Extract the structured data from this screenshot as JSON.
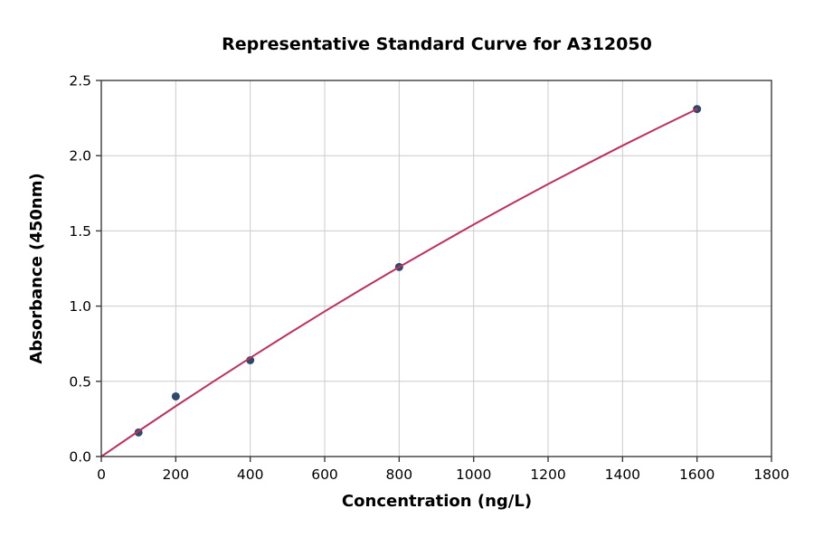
{
  "chart_data": {
    "type": "scatter",
    "title": "Representative Standard Curve for A312050",
    "xlabel": "Concentration (ng/L)",
    "ylabel": "Absorbance (450nm)",
    "xlim": [
      0,
      1800
    ],
    "ylim": [
      0,
      2.5
    ],
    "xticks": [
      0,
      200,
      400,
      600,
      800,
      1000,
      1200,
      1400,
      1600,
      1800
    ],
    "xtick_labels": [
      "0",
      "200",
      "400",
      "600",
      "800",
      "1000",
      "1200",
      "1400",
      "1600",
      "1800"
    ],
    "yticks": [
      0,
      0.5,
      1.0,
      1.5,
      2.0,
      2.5
    ],
    "ytick_labels": [
      "0.0",
      "0.5",
      "1.0",
      "1.5",
      "2.0",
      "2.5"
    ],
    "grid": true,
    "legend": "none",
    "points": [
      {
        "x": 100,
        "y": 0.16
      },
      {
        "x": 200,
        "y": 0.4
      },
      {
        "x": 400,
        "y": 0.64
      },
      {
        "x": 800,
        "y": 1.26
      },
      {
        "x": 1600,
        "y": 2.31
      }
    ],
    "fit_curve": {
      "x": [
        0,
        100,
        200,
        300,
        400,
        500,
        600,
        700,
        800,
        900,
        1000,
        1100,
        1200,
        1300,
        1400,
        1500,
        1600
      ],
      "y": [
        0,
        0.169,
        0.335,
        0.497,
        0.656,
        0.812,
        0.965,
        1.114,
        1.26,
        1.402,
        1.542,
        1.678,
        1.811,
        1.94,
        2.067,
        2.19,
        2.31
      ]
    },
    "colors": {
      "marker": "#2e4a6b",
      "line": "#bd3061",
      "grid": "#cccccc",
      "spine": "#3b3b3b",
      "text": "#000000"
    }
  }
}
